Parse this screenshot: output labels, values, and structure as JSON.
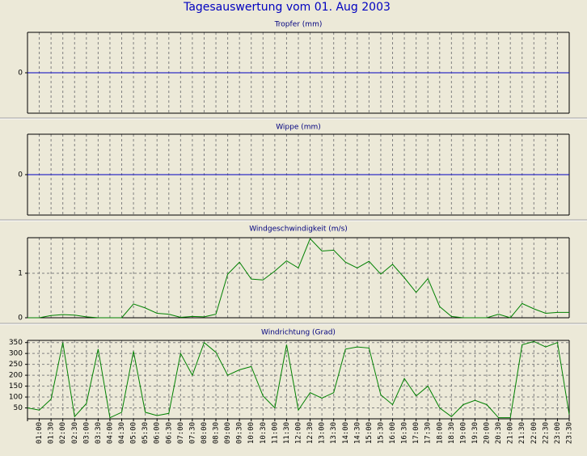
{
  "title": "Tagesauswertung vom 01. Aug 2003",
  "chart_data": [
    {
      "type": "line",
      "title": "Tropfer (mm)",
      "ylim": [
        -1,
        1
      ],
      "yticks": [
        0
      ],
      "grid": false,
      "series": [
        {
          "color": "#0000c0",
          "values": [
            0,
            0,
            0,
            0,
            0,
            0,
            0,
            0,
            0,
            0,
            0,
            0,
            0,
            0,
            0,
            0,
            0,
            0,
            0,
            0,
            0,
            0,
            0,
            0,
            0,
            0,
            0,
            0,
            0,
            0,
            0,
            0,
            0,
            0,
            0,
            0,
            0,
            0,
            0,
            0,
            0,
            0,
            0,
            0,
            0,
            0,
            0
          ]
        }
      ]
    },
    {
      "type": "line",
      "title": "Wippe (mm)",
      "ylim": [
        -1,
        1
      ],
      "yticks": [
        0
      ],
      "grid": false,
      "series": [
        {
          "color": "#0000c0",
          "values": [
            0,
            0,
            0,
            0,
            0,
            0,
            0,
            0,
            0,
            0,
            0,
            0,
            0,
            0,
            0,
            0,
            0,
            0,
            0,
            0,
            0,
            0,
            0,
            0,
            0,
            0,
            0,
            0,
            0,
            0,
            0,
            0,
            0,
            0,
            0,
            0,
            0,
            0,
            0,
            0,
            0,
            0,
            0,
            0,
            0,
            0,
            0
          ]
        }
      ]
    },
    {
      "type": "line",
      "title": "Windgeschwindigkeit (m/s)",
      "ylim": [
        0,
        1.8
      ],
      "yticks": [
        0,
        1
      ],
      "grid": true,
      "series": [
        {
          "color": "#008000",
          "values": [
            0,
            0,
            0.05,
            0.07,
            0.06,
            0.02,
            0,
            0,
            0,
            0.31,
            0.22,
            0.1,
            0.08,
            0.01,
            0.03,
            0.02,
            0.08,
            0.98,
            1.25,
            0.87,
            0.85,
            1.05,
            1.28,
            1.12,
            1.78,
            1.5,
            1.52,
            1.25,
            1.12,
            1.27,
            0.98,
            1.2,
            0.9,
            0.57,
            0.88,
            0.25,
            0.03,
            0,
            0,
            0,
            0.08,
            0,
            0.32,
            0.2,
            0.1,
            0.12,
            0.12
          ]
        }
      ]
    },
    {
      "type": "line",
      "title": "Windrichtung (Grad)",
      "ylim": [
        0,
        360
      ],
      "yticks": [
        50,
        100,
        150,
        200,
        250,
        300,
        350
      ],
      "grid": true,
      "categories": [
        null,
        "01:00",
        "01:30",
        "02:00",
        "02:30",
        "03:00",
        "03:30",
        "04:00",
        "04:30",
        "05:00",
        "05:30",
        "06:00",
        "06:30",
        "07:00",
        "07:30",
        "08:00",
        "08:30",
        "09:00",
        "09:30",
        "10:00",
        "10:30",
        "11:00",
        "11:30",
        "12:00",
        "12:30",
        "13:00",
        "13:30",
        "14:00",
        "14:30",
        "15:00",
        "15:30",
        "16:00",
        "16:30",
        "17:00",
        "17:30",
        "18:00",
        "18:30",
        "19:00",
        "19:30",
        "20:00",
        "20:30",
        "21:00",
        "21:30",
        "22:00",
        "22:30",
        "23:00",
        "23:30"
      ],
      "series": [
        {
          "color": "#008000",
          "values": [
            50,
            40,
            90,
            350,
            10,
            70,
            320,
            5,
            30,
            310,
            30,
            15,
            25,
            300,
            200,
            350,
            305,
            200,
            225,
            240,
            105,
            50,
            340,
            40,
            120,
            95,
            120,
            320,
            330,
            325,
            110,
            65,
            185,
            105,
            150,
            50,
            10,
            65,
            85,
            65,
            5,
            5,
            340,
            355,
            330,
            350,
            20
          ]
        }
      ]
    }
  ]
}
